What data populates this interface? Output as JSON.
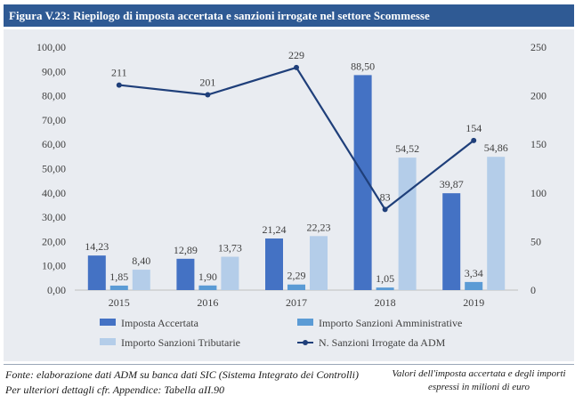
{
  "header": {
    "title": "Figura V.23: Riepilogo di imposta accertata e sanzioni irrogate nel settore Scommesse"
  },
  "footer": {
    "source_line": "Fonte: elaborazione dati ADM su banca dati SIC (Sistema Integrato dei Controlli)",
    "details_line": "Per ulteriori dettagli cfr. Appendice: Tabella aII.90",
    "note_line1": "Valori dell'imposta accertata e degli importi",
    "note_line2": "espressi in milioni di euro"
  },
  "chart_data": {
    "type": "bar",
    "categories": [
      "2015",
      "2016",
      "2017",
      "2018",
      "2019"
    ],
    "series": [
      {
        "name": "Imposta Accertata",
        "values": [
          14.23,
          12.89,
          21.24,
          88.5,
          39.87
        ],
        "labels": [
          "14,23",
          "12,89",
          "21,24",
          "88,50",
          "39,87"
        ],
        "color": "#4472c4"
      },
      {
        "name": "Importo Sanzioni Amministrative",
        "values": [
          1.85,
          1.9,
          2.29,
          1.05,
          3.34
        ],
        "labels": [
          "1,85",
          "1,90",
          "2,29",
          "1,05",
          "3,34"
        ],
        "color": "#5b9bd5"
      },
      {
        "name": "Importo Sanzioni Tributarie",
        "values": [
          8.4,
          13.73,
          22.23,
          54.52,
          54.86
        ],
        "labels": [
          "8,40",
          "13,73",
          "22,23",
          "54,52",
          "54,86"
        ],
        "color": "#b4cde9"
      }
    ],
    "line_series": {
      "name": "N. Sanzioni Irrogate da ADM",
      "values": [
        211,
        201,
        229,
        83,
        154
      ],
      "labels": [
        "211",
        "201",
        "229",
        "83",
        "154"
      ],
      "color": "#1f3f7a",
      "axis": "secondary"
    },
    "ylim": [
      0,
      100
    ],
    "y2lim": [
      0,
      250
    ],
    "y_ticks": [
      "0,00",
      "10,00",
      "20,00",
      "30,00",
      "40,00",
      "50,00",
      "60,00",
      "70,00",
      "80,00",
      "90,00",
      "100,00"
    ],
    "y2_ticks": [
      "0",
      "50",
      "100",
      "150",
      "200",
      "250"
    ],
    "grid": false,
    "legend_position": "bottom"
  }
}
